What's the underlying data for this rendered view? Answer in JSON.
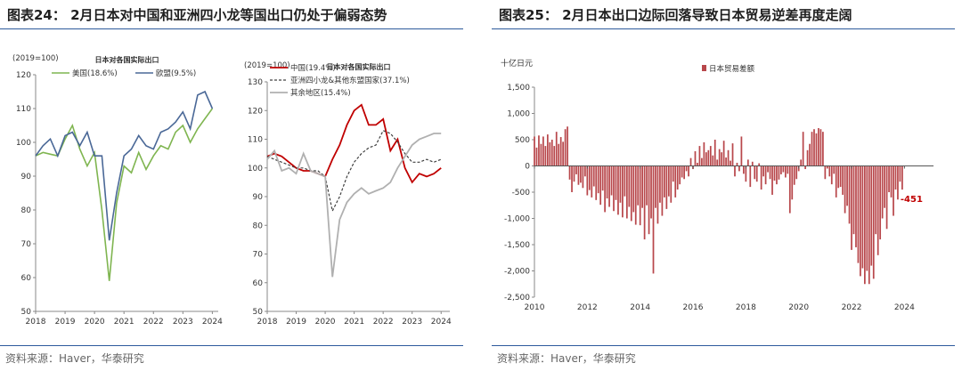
{
  "panels": {
    "left": {
      "title": "图表24：  2月日本对中国和亚洲四小龙等国出口仍处于偏弱态势",
      "source": "资料来源：Haver，华泰研究"
    },
    "right": {
      "title": "图表25：  2月日本出口边际回落导致日本贸易逆差再度走阔",
      "source": "资料来源：Haver，华泰研究"
    }
  },
  "colors": {
    "rule": "#2d5a9c",
    "us": "#7fb550",
    "eu": "#4a6897",
    "china": "#c00000",
    "asia": "#404040",
    "rest": "#b0b0b0",
    "trade_bar": "#b8474b",
    "axis": "#888888"
  },
  "chart_data": [
    {
      "type": "line",
      "title": "日本对各国实际出口",
      "unit_label": "(2019=100)",
      "xlim": [
        2018,
        2024.2
      ],
      "xticks": [
        2018,
        2019,
        2020,
        2021,
        2022,
        2023,
        2024
      ],
      "ylim": [
        50,
        120
      ],
      "yticks": [
        50,
        60,
        70,
        80,
        90,
        100,
        110,
        120
      ],
      "legend_position": "top-left",
      "series": [
        {
          "name": "美国(18.6%)",
          "x": [
            2018.0,
            2018.25,
            2018.5,
            2018.75,
            2019.0,
            2019.25,
            2019.5,
            2019.75,
            2020.0,
            2020.25,
            2020.5,
            2020.75,
            2021.0,
            2021.25,
            2021.5,
            2021.75,
            2022.0,
            2022.25,
            2022.5,
            2022.75,
            2023.0,
            2023.25,
            2023.5,
            2023.75,
            2024.0
          ],
          "values": [
            96,
            97,
            96.5,
            96,
            101,
            105,
            98,
            93,
            97,
            80,
            59,
            82,
            93,
            91,
            97,
            92,
            96,
            99,
            98,
            103,
            105,
            100,
            104,
            107,
            110
          ]
        },
        {
          "name": "欧盟(9.5%)",
          "x": [
            2018.0,
            2018.25,
            2018.5,
            2018.75,
            2019.0,
            2019.25,
            2019.5,
            2019.75,
            2020.0,
            2020.25,
            2020.5,
            2020.75,
            2021.0,
            2021.25,
            2021.5,
            2021.75,
            2022.0,
            2022.25,
            2022.5,
            2022.75,
            2023.0,
            2023.25,
            2023.5,
            2023.75,
            2024.0
          ],
          "values": [
            96,
            99,
            101,
            96,
            102,
            103,
            99,
            103,
            96,
            96,
            71,
            85,
            96,
            98,
            102,
            99,
            98,
            103,
            104,
            106,
            109,
            104,
            114,
            115,
            110
          ]
        }
      ]
    },
    {
      "type": "line",
      "title": "日本对各国实际出口",
      "unit_label": "(2019=100)",
      "xlim": [
        2018,
        2024.3
      ],
      "xticks": [
        2018,
        2019,
        2020,
        2021,
        2022,
        2023,
        2024
      ],
      "ylim": [
        50,
        130
      ],
      "yticks": [
        50,
        60,
        70,
        80,
        90,
        100,
        110,
        120,
        130
      ],
      "legend_position": "top-left",
      "series": [
        {
          "name": "中国(19.4%)",
          "x": [
            2018.0,
            2018.25,
            2018.5,
            2018.75,
            2019.0,
            2019.25,
            2019.5,
            2019.75,
            2020.0,
            2020.25,
            2020.5,
            2020.75,
            2021.0,
            2021.25,
            2021.5,
            2021.75,
            2022.0,
            2022.25,
            2022.5,
            2022.75,
            2023.0,
            2023.25,
            2023.5,
            2023.75,
            2024.0
          ],
          "values": [
            104,
            105,
            104,
            102,
            100,
            99,
            99,
            98,
            97,
            103,
            108,
            115,
            120,
            122,
            115,
            115,
            117,
            106,
            110,
            100,
            95,
            98,
            97,
            98,
            100
          ]
        },
        {
          "name": "亚洲四小龙&其他东盟国家(37.1%)",
          "x": [
            2018.0,
            2018.25,
            2018.5,
            2018.75,
            2019.0,
            2019.25,
            2019.5,
            2019.75,
            2020.0,
            2020.25,
            2020.5,
            2020.75,
            2021.0,
            2021.25,
            2021.5,
            2021.75,
            2022.0,
            2022.25,
            2022.5,
            2022.75,
            2023.0,
            2023.25,
            2023.5,
            2023.75,
            2024.0
          ],
          "values": [
            104,
            103,
            102,
            101,
            100,
            100,
            99,
            99,
            97,
            85,
            90,
            97,
            102,
            105,
            107,
            108,
            113,
            112,
            109,
            105,
            102,
            102,
            103,
            102,
            103
          ]
        },
        {
          "name": "其余地区(15.4%)",
          "x": [
            2018.0,
            2018.25,
            2018.5,
            2018.75,
            2019.0,
            2019.25,
            2019.5,
            2019.75,
            2020.0,
            2020.25,
            2020.5,
            2020.75,
            2021.0,
            2021.25,
            2021.5,
            2021.75,
            2022.0,
            2022.25,
            2022.5,
            2022.75,
            2023.0,
            2023.25,
            2023.5,
            2023.75,
            2024.0
          ],
          "values": [
            103,
            106,
            99,
            100,
            98,
            105,
            99,
            98,
            97,
            62,
            82,
            88,
            91,
            93,
            91,
            92,
            93,
            95,
            100,
            104,
            108,
            110,
            111,
            112,
            112
          ]
        }
      ]
    },
    {
      "type": "bar",
      "title": "",
      "unit_label": "十亿日元",
      "xlim": [
        2010,
        2025.1
      ],
      "xticks": [
        2010,
        2012,
        2014,
        2016,
        2018,
        2020,
        2022,
        2024
      ],
      "ylim": [
        -2500,
        1500
      ],
      "yticks": [
        -2500,
        -2000,
        -1500,
        -1000,
        -500,
        0,
        500,
        1000,
        1500
      ],
      "ytick_labels": [
        "-2,500",
        "-2,000",
        "-1,500",
        "-1,000",
        "-500",
        "0",
        "500",
        "1,000",
        "1,500"
      ],
      "legend_position": "top-center",
      "annotation": "-451",
      "series": [
        {
          "name": "日本贸易差额",
          "start": 2010.0,
          "step": 0.0833333,
          "values": [
            560,
            350,
            580,
            420,
            560,
            380,
            600,
            450,
            500,
            380,
            650,
            420,
            550,
            460,
            700,
            750,
            -260,
            -500,
            -300,
            -160,
            -360,
            -320,
            -420,
            -200,
            -560,
            -460,
            -600,
            -390,
            -650,
            -520,
            -740,
            -470,
            -880,
            -620,
            -780,
            -560,
            -860,
            -650,
            -930,
            -700,
            -980,
            -580,
            -1000,
            -780,
            -1050,
            -880,
            -1120,
            -750,
            -1130,
            -800,
            -1400,
            -750,
            -1300,
            -1000,
            -2050,
            -800,
            -1100,
            -700,
            -950,
            -600,
            -820,
            -580,
            -700,
            -300,
            -600,
            -450,
            -350,
            -220,
            -250,
            -100,
            -200,
            150,
            -60,
            280,
            60,
            380,
            150,
            450,
            260,
            300,
            380,
            200,
            500,
            120,
            320,
            260,
            480,
            160,
            300,
            100,
            430,
            -200,
            60,
            -100,
            560,
            -150,
            -300,
            120,
            -400,
            80,
            -250,
            -300,
            50,
            -450,
            -200,
            -350,
            -120,
            -250,
            -550,
            -280,
            -350,
            -260,
            -160,
            -120,
            -220,
            -150,
            -900,
            -640,
            -360,
            -250,
            -100,
            120,
            650,
            -60,
            300,
            420,
            650,
            700,
            620,
            720,
            700,
            650,
            -250,
            -50,
            -200,
            -350,
            -150,
            -600,
            -420,
            -400,
            -550,
            -900,
            -760,
            -1100,
            -1600,
            -1300,
            -1550,
            -1850,
            -2100,
            -1950,
            -2250,
            -2000,
            -2250,
            -1900,
            -2150,
            -1300,
            -1700,
            -1400,
            -1000,
            -800,
            -1200,
            -500,
            -600,
            -950,
            -450,
            -640,
            -300,
            -451
          ]
        }
      ]
    }
  ]
}
